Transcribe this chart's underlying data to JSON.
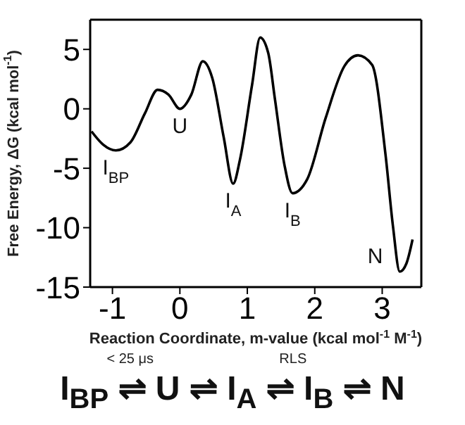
{
  "chart_data": {
    "type": "line",
    "xlabel": "Reaction Coordinate, m-value (kcal mol$^{-1}$ M$^{-1}$)",
    "ylabel": "Free Energy, ΔG (kcal mol$^{-1}$)",
    "x": [
      -1.31,
      -1.14,
      -0.95,
      -0.73,
      -0.52,
      -0.33,
      -0.17,
      0,
      0.17,
      0.34,
      0.48,
      0.65,
      0.79,
      0.89,
      1.07,
      1.19,
      1.31,
      1.41,
      1.55,
      1.67,
      1.89,
      2.16,
      2.44,
      2.64,
      2.85,
      3.05,
      3.16,
      3.26,
      3.36,
      3.45
    ],
    "series": [
      {
        "color": "#000000",
        "values": [
          -1.9,
          -3.0,
          -3.5,
          -2.8,
          -0.4,
          1.6,
          1.2,
          0,
          1.2,
          4.0,
          2.6,
          -2.4,
          -6.3,
          -4.3,
          2.0,
          6.0,
          4.7,
          0.8,
          -4.7,
          -7.1,
          -5.9,
          -0.8,
          3.6,
          4.5,
          3.7,
          -3.9,
          -9.9,
          -13.7,
          -13.0,
          -11.0
        ]
      }
    ],
    "xlim": [
      -1.33,
      3.58
    ],
    "xticks": [
      -1,
      0,
      1,
      2,
      3
    ],
    "ylim": [
      -15,
      7.5
    ],
    "yticks": [
      -15,
      -10,
      -5,
      0,
      5
    ],
    "marker": "none",
    "line_style": "solid",
    "grid": false,
    "legend": false,
    "annotations": [
      {
        "text": "I$_{BP}$",
        "x": -0.95,
        "y": -3.5
      },
      {
        "text": "U",
        "x": 0,
        "y": 0
      },
      {
        "text": "I$_{A}$",
        "x": 0.79,
        "y": -6.3
      },
      {
        "text": "I$_{B}$",
        "x": 1.67,
        "y": -7.1
      },
      {
        "text": "N",
        "x": 3.26,
        "y": -13.7
      },
      "< 25 μs",
      "RLS",
      "I$_{BP}$ ⇌ U ⇌ I$_{A}$ ⇌ I$_{B}$ ⇌ N"
    ]
  }
}
